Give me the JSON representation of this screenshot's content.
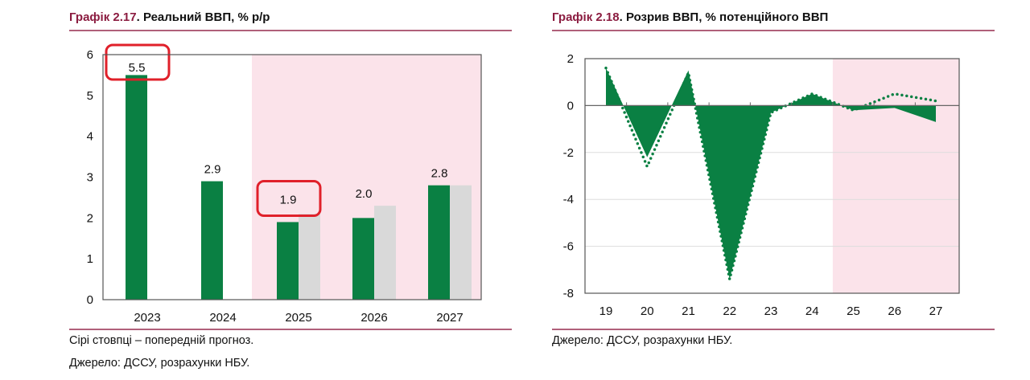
{
  "chart_data": [
    {
      "type": "bar",
      "title_num": "Графік 2.17",
      "title": ". Реальний ВВП, % р/р",
      "categories": [
        "2023",
        "2024",
        "2025",
        "2026",
        "2027"
      ],
      "series": [
        {
          "values": [
            5.5,
            2.9,
            1.9,
            2.0,
            2.8
          ],
          "color": "#0a8043"
        },
        {
          "values": [
            null,
            null,
            2.1,
            2.3,
            2.8
          ],
          "color": "#d9d9d9"
        }
      ],
      "data_labels": [
        "5.5",
        "2.9",
        "1.9",
        "2.0",
        "2.8"
      ],
      "highlighted_labels": [
        "5.5",
        "1.9"
      ],
      "ylim": [
        0,
        6
      ],
      "yticks": [
        "0",
        "1",
        "2",
        "3",
        "4",
        "5",
        "6"
      ],
      "forecast_shading_from": "2025",
      "shade_color": "#fbe3ea",
      "notes": [
        "Сірі стовпці – попередній прогноз.",
        "Джерело: ДССУ, розрахунки НБУ."
      ]
    },
    {
      "type": "area",
      "title_num": "Графік 2.18",
      "title": ". Розрив ВВП, % потенційного ВВП",
      "categories": [
        "19",
        "20",
        "21",
        "22",
        "23",
        "24",
        "25",
        "26",
        "27"
      ],
      "series": [
        {
          "style": "area",
          "values": [
            1.6,
            -2.2,
            1.5,
            -7.4,
            -0.3,
            0.5,
            -0.2,
            -0.1,
            -0.7
          ],
          "color": "#0a8043"
        },
        {
          "style": "dotted",
          "values": [
            1.6,
            -2.6,
            1.4,
            -7.4,
            -0.3,
            0.5,
            -0.2,
            0.5,
            0.2
          ],
          "color": "#0a8043"
        }
      ],
      "ylim": [
        -8,
        2
      ],
      "yticks": [
        "-8",
        "-6",
        "-4",
        "-2",
        "0",
        "2"
      ],
      "forecast_shading_from": "25",
      "shade_color": "#fbe3ea",
      "notes": [
        "Джерело: ДССУ, розрахунки НБУ."
      ]
    }
  ]
}
